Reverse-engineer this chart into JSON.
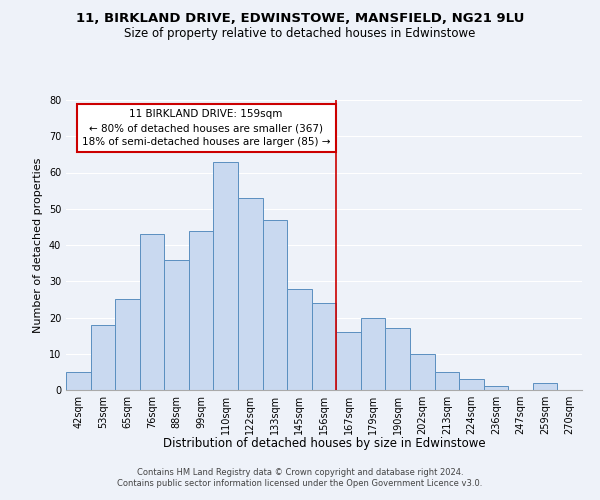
{
  "title1": "11, BIRKLAND DRIVE, EDWINSTOWE, MANSFIELD, NG21 9LU",
  "title2": "Size of property relative to detached houses in Edwinstowe",
  "xlabel": "Distribution of detached houses by size in Edwinstowe",
  "ylabel": "Number of detached properties",
  "footer1": "Contains HM Land Registry data © Crown copyright and database right 2024.",
  "footer2": "Contains public sector information licensed under the Open Government Licence v3.0.",
  "bin_labels": [
    "42sqm",
    "53sqm",
    "65sqm",
    "76sqm",
    "88sqm",
    "99sqm",
    "110sqm",
    "122sqm",
    "133sqm",
    "145sqm",
    "156sqm",
    "167sqm",
    "179sqm",
    "190sqm",
    "202sqm",
    "213sqm",
    "224sqm",
    "236sqm",
    "247sqm",
    "259sqm",
    "270sqm"
  ],
  "bar_values": [
    5,
    18,
    25,
    43,
    36,
    44,
    63,
    53,
    47,
    28,
    24,
    16,
    20,
    17,
    10,
    5,
    3,
    1,
    0,
    2,
    0
  ],
  "bar_color": "#c9d9f0",
  "bar_edge_color": "#5a8fc0",
  "background_color": "#eef2f9",
  "grid_color": "#ffffff",
  "vline_x_index": 10.5,
  "vline_color": "#cc0000",
  "annotation_title": "11 BIRKLAND DRIVE: 159sqm",
  "annotation_line1": "← 80% of detached houses are smaller (367)",
  "annotation_line2": "18% of semi-detached houses are larger (85) →",
  "annotation_box_color": "#ffffff",
  "annotation_box_edge_color": "#cc0000",
  "ylim": [
    0,
    80
  ],
  "yticks": [
    0,
    10,
    20,
    30,
    40,
    50,
    60,
    70,
    80
  ],
  "title1_fontsize": 9.5,
  "title2_fontsize": 8.5,
  "xlabel_fontsize": 8.5,
  "ylabel_fontsize": 8,
  "tick_fontsize": 7,
  "annotation_fontsize": 7.5,
  "footer_fontsize": 6
}
